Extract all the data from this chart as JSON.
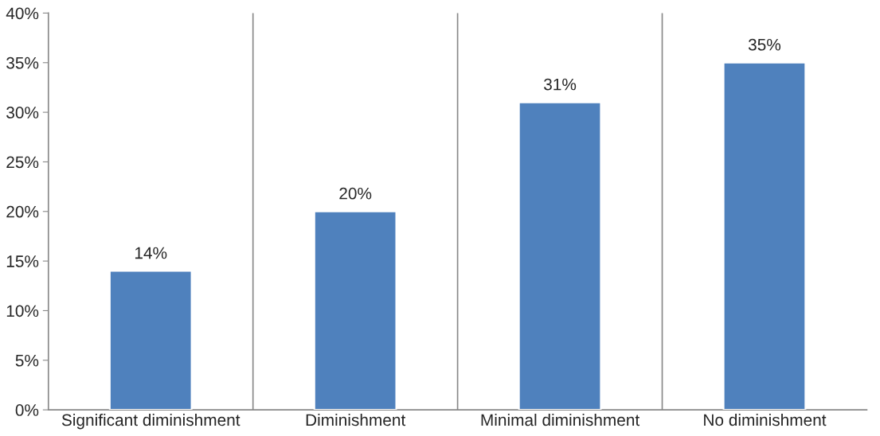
{
  "chart_data": {
    "type": "bar",
    "categories": [
      "Significant diminishment",
      "Diminishment",
      "Minimal diminishment",
      "No diminishment"
    ],
    "values": [
      14,
      20,
      31,
      35
    ],
    "color": "#4f81bd",
    "data_labels": true,
    "value_labels": [
      "14%",
      "20%",
      "31%",
      "35%"
    ],
    "ylim": [
      0,
      40
    ],
    "yticks": [
      {
        "value": 0,
        "label": "0%"
      },
      {
        "value": 5,
        "label": "5%"
      },
      {
        "value": 10,
        "label": "10%"
      },
      {
        "value": 15,
        "label": "15%"
      },
      {
        "value": 20,
        "label": "20%"
      },
      {
        "value": 25,
        "label": "25%"
      },
      {
        "value": 30,
        "label": "30%"
      },
      {
        "value": 35,
        "label": "35%"
      },
      {
        "value": 40,
        "label": "40%"
      }
    ],
    "grid": "x",
    "legend": false
  }
}
